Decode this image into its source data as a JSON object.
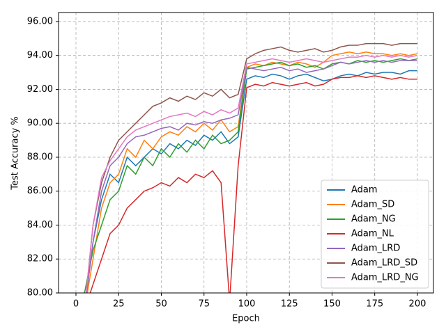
{
  "chart_data": {
    "type": "line",
    "xlabel": "Epoch",
    "ylabel": "Test Accuracy %",
    "x": [
      5,
      10,
      15,
      20,
      25,
      30,
      35,
      40,
      45,
      50,
      55,
      60,
      65,
      70,
      75,
      80,
      85,
      90,
      95,
      100,
      105,
      110,
      115,
      120,
      125,
      130,
      135,
      140,
      145,
      150,
      155,
      160,
      165,
      170,
      175,
      180,
      185,
      190,
      195,
      200
    ],
    "series": [
      {
        "name": "Adam",
        "color": "#1f77b4",
        "values": [
          79,
          83,
          85.5,
          87,
          86.5,
          88,
          87.5,
          88,
          88.5,
          88.2,
          88.8,
          88.5,
          89,
          88.7,
          89.3,
          89,
          89.5,
          88.8,
          89.2,
          92.6,
          92.8,
          92.7,
          92.9,
          92.8,
          92.6,
          92.8,
          92.9,
          92.7,
          92.5,
          92.6,
          92.8,
          92.9,
          92.8,
          93,
          92.9,
          93,
          93,
          92.9,
          93.1,
          93.1
        ]
      },
      {
        "name": "Adam_SD",
        "color": "#ff7f0e",
        "values": [
          79,
          82,
          85,
          86.5,
          87,
          88.5,
          88,
          89,
          88.5,
          89.2,
          89.5,
          89.3,
          89.8,
          89.5,
          90,
          89.6,
          90.2,
          89.5,
          89.8,
          93.3,
          93.5,
          93.4,
          93.6,
          93.5,
          93.4,
          93.6,
          93.5,
          93.3,
          93.6,
          94,
          94.1,
          94.2,
          94.1,
          94.2,
          94.1,
          94.1,
          94,
          94.1,
          94,
          94.1
        ]
      },
      {
        "name": "Adam_NG",
        "color": "#2ca02c",
        "values": [
          80,
          82.5,
          84,
          85.5,
          86,
          87.5,
          87,
          88,
          87.5,
          88.5,
          88,
          88.8,
          88.3,
          89,
          88.5,
          89.3,
          88.8,
          89,
          89.5,
          93.2,
          93.3,
          93.4,
          93.5,
          93.6,
          93.4,
          93.5,
          93.3,
          93.4,
          93.2,
          93.5,
          93.6,
          93.5,
          93.7,
          93.6,
          93.7,
          93.6,
          93.7,
          93.8,
          93.7,
          93.8
        ]
      },
      {
        "name": "Adam_NL",
        "color": "#d62728",
        "values": [
          79,
          80.5,
          82,
          83.5,
          84,
          85,
          85.5,
          86,
          86.2,
          86.5,
          86.3,
          86.8,
          86.5,
          87,
          86.8,
          87.2,
          86.5,
          79.5,
          87.5,
          92.1,
          92.3,
          92.2,
          92.4,
          92.3,
          92.2,
          92.3,
          92.4,
          92.2,
          92.3,
          92.6,
          92.7,
          92.7,
          92.8,
          92.7,
          92.8,
          92.7,
          92.6,
          92.7,
          92.6,
          92.6
        ]
      },
      {
        "name": "Adam_LRD",
        "color": "#9467bd",
        "values": [
          79,
          83,
          86,
          87.5,
          88,
          88.8,
          89.2,
          89.3,
          89.5,
          89.7,
          89.8,
          89.6,
          90,
          89.9,
          90.1,
          90,
          90.2,
          90.3,
          90.5,
          93.3,
          93.2,
          93.1,
          93.2,
          93.3,
          93.1,
          93.2,
          93,
          93.1,
          93.2,
          93.4,
          93.6,
          93.5,
          93.6,
          93.7,
          93.6,
          93.7,
          93.6,
          93.7,
          93.7,
          93.7
        ]
      },
      {
        "name": "Adam_LRD_SD",
        "color": "#8c564b",
        "values": [
          79,
          84,
          86.5,
          88,
          89,
          89.5,
          90,
          90.5,
          91,
          91.2,
          91.5,
          91.3,
          91.6,
          91.4,
          91.8,
          91.6,
          92,
          91.5,
          91.7,
          93.8,
          94.1,
          94.3,
          94.4,
          94.5,
          94.3,
          94.2,
          94.3,
          94.4,
          94.2,
          94.3,
          94.5,
          94.6,
          94.6,
          94.7,
          94.7,
          94.7,
          94.6,
          94.7,
          94.7,
          94.7
        ]
      },
      {
        "name": "Adam_LRD_NG",
        "color": "#e377c2",
        "values": [
          79,
          84,
          86.8,
          87.8,
          88.5,
          89.2,
          89.6,
          89.8,
          90,
          90.2,
          90.4,
          90.5,
          90.6,
          90.4,
          90.7,
          90.5,
          90.8,
          90.6,
          90.9,
          93.5,
          93.6,
          93.7,
          93.8,
          93.7,
          93.6,
          93.7,
          93.8,
          93.7,
          93.6,
          93.7,
          93.8,
          93.9,
          93.9,
          94,
          93.9,
          94,
          93.9,
          94,
          93.9,
          94
        ]
      }
    ],
    "xlim": [
      -10.2,
      209.4
    ],
    "xticks": [
      0,
      25,
      50,
      75,
      100,
      125,
      150,
      175,
      200
    ],
    "ylim": [
      80,
      96.53
    ],
    "yticks": [
      {
        "value": 80,
        "label": "80.00"
      },
      {
        "value": 82,
        "label": "82.00"
      },
      {
        "value": 84,
        "label": "84.00"
      },
      {
        "value": 86,
        "label": "86.00"
      },
      {
        "value": 88,
        "label": "88.00"
      },
      {
        "value": 90,
        "label": "90.00"
      },
      {
        "value": 92,
        "label": "92.00"
      },
      {
        "value": 94,
        "label": "94.00"
      },
      {
        "value": 96,
        "label": "96.00"
      }
    ],
    "grid": true,
    "legend": "lower right"
  }
}
